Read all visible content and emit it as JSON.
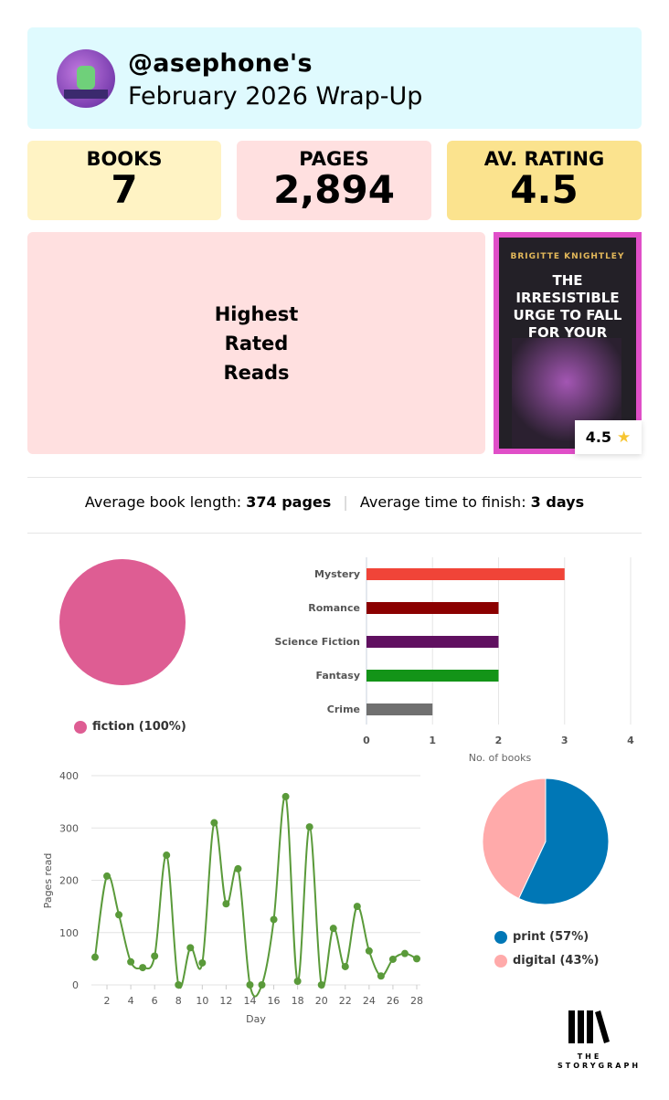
{
  "header": {
    "username": "@asephone's",
    "subtitle": "February 2026 Wrap-Up"
  },
  "stats": [
    {
      "label": "BOOKS",
      "value": "7",
      "color": "#fff3c4"
    },
    {
      "label": "PAGES",
      "value": "2,894",
      "color": "#ffe0e0"
    },
    {
      "label": "AV. RATING",
      "value": "4.5",
      "color": "#fbe38e"
    }
  ],
  "highest_rated": {
    "title": "Highest Rated Reads",
    "book": {
      "author": "BRIGITTE KNIGHTLEY",
      "title": "THE IRRESISTIBLE URGE TO FALL FOR YOUR ENEMY",
      "rating": "4.5",
      "rating_icon": "star-icon"
    }
  },
  "averages": {
    "length_label": "Average book length:",
    "length_value": "374 pages",
    "finish_label": "Average time to finish:",
    "finish_value": "3 days"
  },
  "chart_data": [
    {
      "type": "pie",
      "values": [
        100
      ],
      "labels": [
        "fiction"
      ],
      "colors": [
        "#de5d93"
      ],
      "legend": [
        "fiction (100%)"
      ],
      "legend_placement": "bottom"
    },
    {
      "type": "bar",
      "orientation": "horizontal",
      "categories": [
        "Mystery",
        "Romance",
        "Science Fiction",
        "Fantasy",
        "Crime"
      ],
      "values": [
        3,
        2,
        2,
        2,
        1
      ],
      "colors": [
        "#f04438",
        "#8b0000",
        "#601060",
        "#139418",
        "#707070"
      ],
      "xlabel": "No. of books",
      "xlim": [
        0,
        4
      ],
      "xticks": [
        "0",
        "1",
        "2",
        "3",
        "4"
      ],
      "grid": true
    },
    {
      "type": "line",
      "x": [
        1,
        2,
        3,
        4,
        5,
        6,
        7,
        8,
        9,
        10,
        11,
        12,
        13,
        14,
        15,
        16,
        17,
        18,
        19,
        20,
        21,
        22,
        23,
        24,
        25,
        26,
        27,
        28
      ],
      "values": [
        53,
        208,
        134,
        44,
        33,
        55,
        248,
        0,
        71,
        42,
        310,
        155,
        222,
        0,
        0,
        125,
        360,
        7,
        302,
        0,
        108,
        35,
        150,
        65,
        17,
        49,
        60,
        50
      ],
      "xlabel": "Day",
      "ylabel": "Pages read",
      "ylim": [
        0,
        400
      ],
      "yticks": [
        "0",
        "100",
        "200",
        "300",
        "400"
      ],
      "xticks": [
        "2",
        "4",
        "6",
        "8",
        "10",
        "12",
        "14",
        "16",
        "18",
        "20",
        "22",
        "24",
        "26",
        "28"
      ],
      "color": "#5a9a3a",
      "smooth": true,
      "grid": true
    },
    {
      "type": "pie",
      "values": [
        57,
        43
      ],
      "labels": [
        "print",
        "digital"
      ],
      "colors": [
        "#0077b6",
        "#ffaaaa"
      ],
      "legend": [
        "print (57%)",
        "digital (43%)"
      ],
      "legend_placement": "bottom"
    }
  ],
  "logo": {
    "text": "THE STORYGRAPH"
  }
}
